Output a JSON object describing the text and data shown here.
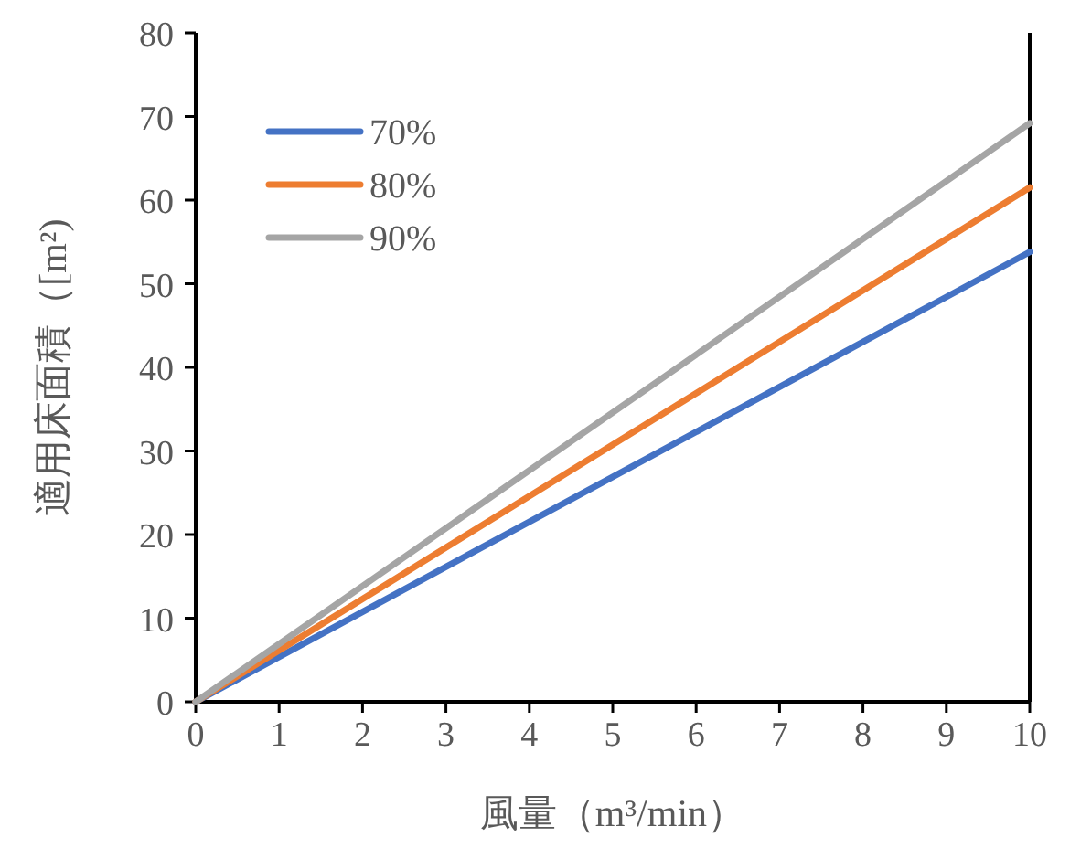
{
  "chart_data": {
    "type": "line",
    "xlabel": "風量（m³/min）",
    "ylabel": "適用床面積（[m²)",
    "x": [
      0,
      10
    ],
    "series": [
      {
        "name": "70%",
        "color": "#4472c4",
        "values": [
          0,
          53.8
        ]
      },
      {
        "name": "80%",
        "color": "#ed7d31",
        "values": [
          0,
          61.5
        ]
      },
      {
        "name": "90%",
        "color": "#a5a5a5",
        "values": [
          0,
          69.2
        ]
      }
    ],
    "xlim": [
      0,
      10
    ],
    "ylim": [
      0,
      80
    ],
    "xticks": [
      0,
      1,
      2,
      3,
      4,
      5,
      6,
      7,
      8,
      9,
      10
    ],
    "yticks": [
      0,
      10,
      20,
      30,
      40,
      50,
      60,
      70,
      80
    ],
    "grid": false,
    "legend": "top left",
    "marker": "none",
    "line_style": "solid"
  }
}
